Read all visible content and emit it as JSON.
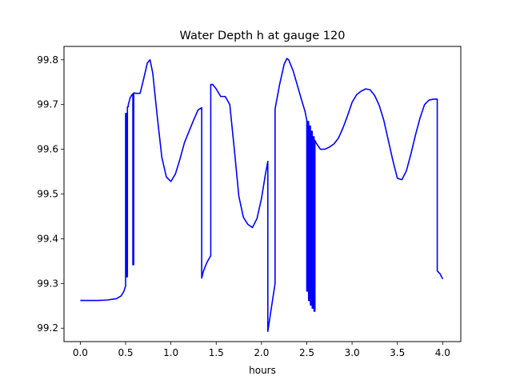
{
  "chart_data": {
    "type": "line",
    "title": "Water Depth h at gauge 120",
    "xlabel": "hours",
    "ylabel": "",
    "xlim": [
      -0.18,
      4.2
    ],
    "ylim": [
      99.17,
      99.83
    ],
    "xticks": [
      0.0,
      0.5,
      1.0,
      1.5,
      2.0,
      2.5,
      3.0,
      3.5,
      4.0
    ],
    "xtick_labels": [
      "0.0",
      "0.5",
      "1.0",
      "1.5",
      "2.0",
      "2.5",
      "3.0",
      "3.5",
      "4.0"
    ],
    "yticks": [
      99.2,
      99.3,
      99.4,
      99.5,
      99.6,
      99.7,
      99.8
    ],
    "ytick_labels": [
      "99.2",
      "99.3",
      "99.4",
      "99.5",
      "99.6",
      "99.7",
      "99.8"
    ],
    "grid": false,
    "series": [
      {
        "color": "#0000ff",
        "x": [
          0.0,
          0.1,
          0.2,
          0.3,
          0.4,
          0.45,
          0.48,
          0.5,
          0.5,
          0.51,
          0.51,
          0.52,
          0.52,
          0.53,
          0.53,
          0.55,
          0.57,
          0.58,
          0.58,
          0.59,
          0.59,
          0.62,
          0.66,
          0.7,
          0.74,
          0.77,
          0.8,
          0.85,
          0.9,
          0.95,
          1.0,
          1.05,
          1.1,
          1.15,
          1.2,
          1.25,
          1.3,
          1.34,
          1.34,
          1.36,
          1.4,
          1.44,
          1.44,
          1.46,
          1.5,
          1.55,
          1.6,
          1.65,
          1.7,
          1.75,
          1.8,
          1.85,
          1.9,
          1.95,
          2.0,
          2.04,
          2.07,
          2.07,
          2.09,
          2.12,
          2.15,
          2.15,
          2.2,
          2.25,
          2.28,
          2.3,
          2.35,
          2.4,
          2.45,
          2.48,
          2.5,
          2.5,
          2.51,
          2.51,
          2.52,
          2.52,
          2.53,
          2.53,
          2.54,
          2.54,
          2.55,
          2.55,
          2.56,
          2.56,
          2.57,
          2.57,
          2.58,
          2.58,
          2.59,
          2.59,
          2.6,
          2.65,
          2.7,
          2.75,
          2.8,
          2.85,
          2.9,
          2.95,
          3.0,
          3.05,
          3.1,
          3.15,
          3.2,
          3.25,
          3.3,
          3.35,
          3.4,
          3.45,
          3.5,
          3.55,
          3.6,
          3.65,
          3.7,
          3.75,
          3.8,
          3.85,
          3.9,
          3.94,
          3.94,
          3.97,
          4.0
        ],
        "y": [
          99.262,
          99.262,
          99.262,
          99.263,
          99.266,
          99.272,
          99.282,
          99.294,
          99.68,
          99.68,
          99.315,
          99.315,
          99.695,
          99.695,
          99.7,
          99.715,
          99.722,
          99.724,
          99.342,
          99.342,
          99.726,
          99.725,
          99.725,
          99.758,
          99.793,
          99.8,
          99.77,
          99.672,
          99.582,
          99.538,
          99.528,
          99.545,
          99.578,
          99.615,
          99.64,
          99.665,
          99.688,
          99.693,
          99.312,
          99.328,
          99.348,
          99.362,
          99.745,
          99.745,
          99.735,
          99.718,
          99.718,
          99.7,
          99.6,
          99.495,
          99.448,
          99.432,
          99.425,
          99.445,
          99.49,
          99.54,
          99.573,
          99.193,
          99.22,
          99.26,
          99.3,
          99.69,
          99.745,
          99.79,
          99.803,
          99.8,
          99.775,
          99.74,
          99.705,
          99.685,
          99.665,
          99.283,
          99.283,
          99.662,
          99.662,
          99.262,
          99.262,
          99.652,
          99.652,
          99.252,
          99.252,
          99.64,
          99.64,
          99.245,
          99.245,
          99.628,
          99.628,
          99.238,
          99.238,
          99.62,
          99.615,
          99.6,
          99.6,
          99.605,
          99.612,
          99.625,
          99.648,
          99.675,
          99.705,
          99.722,
          99.73,
          99.735,
          99.733,
          99.72,
          99.698,
          99.665,
          99.62,
          99.575,
          99.535,
          99.532,
          99.552,
          99.59,
          99.632,
          99.67,
          99.7,
          99.71,
          99.712,
          99.712,
          99.328,
          99.322,
          99.31
        ]
      }
    ]
  }
}
